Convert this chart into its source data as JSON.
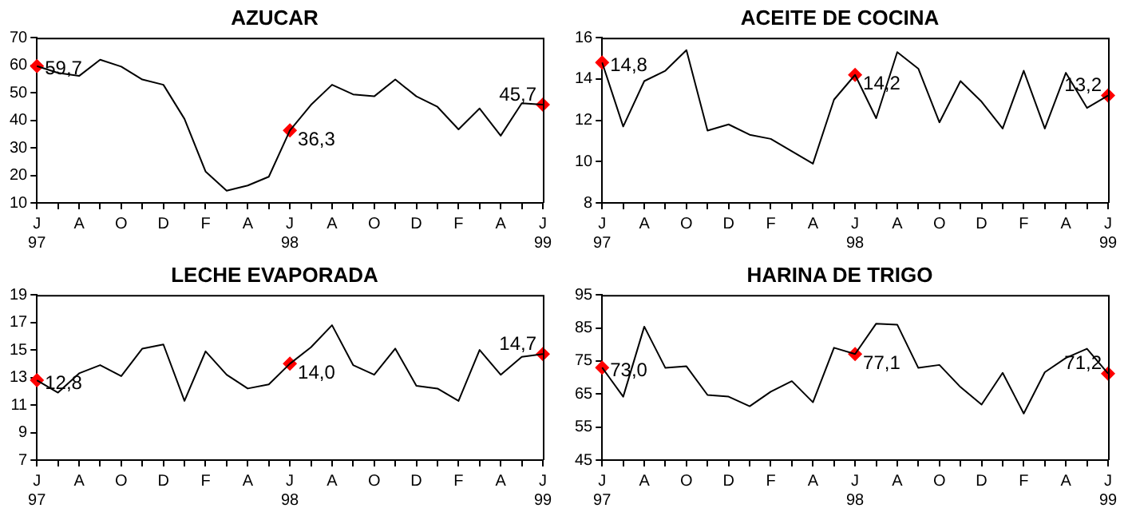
{
  "chart_data": [
    {
      "type": "line",
      "title": "AZUCAR",
      "categories": [
        "J\n97",
        null,
        "A",
        null,
        "O",
        null,
        "D",
        null,
        "F",
        null,
        "A",
        null,
        "J\n98",
        null,
        "A",
        null,
        "O",
        null,
        "D",
        null,
        "F",
        null,
        "A",
        null,
        "J\n99"
      ],
      "series": [
        {
          "color": "#000000",
          "marker": "none",
          "values": [
            59.7,
            57.2,
            56.1,
            62,
            59.5,
            54.8,
            52.9,
            40.5,
            21.4,
            14.4,
            16.3,
            19.5,
            36.3,
            45.6,
            52.9,
            49.4,
            48.7,
            54.8,
            48.7,
            44.9,
            36.7,
            44.3,
            34.4,
            46.2,
            45.7
          ]
        },
        {
          "type": "scatter",
          "color": "#ff0000",
          "marker": "diamond",
          "values": [
            59.7,
            null,
            null,
            null,
            null,
            null,
            null,
            null,
            null,
            null,
            null,
            null,
            36.3,
            null,
            null,
            null,
            null,
            null,
            null,
            null,
            null,
            null,
            null,
            null,
            45.7
          ],
          "value_labels": [
            "59,7",
            null,
            null,
            null,
            null,
            null,
            null,
            null,
            null,
            null,
            null,
            null,
            "36,3",
            null,
            null,
            null,
            null,
            null,
            null,
            null,
            null,
            null,
            null,
            null,
            "45,7"
          ]
        }
      ],
      "ylim": [
        10,
        70
      ],
      "yticks": [
        10,
        20,
        30,
        40,
        50,
        60,
        70
      ],
      "grid": false,
      "legend": false
    },
    {
      "type": "line",
      "title": "ACEITE DE COCINA",
      "categories": [
        "J\n97",
        null,
        "A",
        null,
        "O",
        null,
        "D",
        null,
        "F",
        null,
        "A",
        null,
        "J\n98",
        null,
        "A",
        null,
        "O",
        null,
        "D",
        null,
        "F",
        null,
        "A",
        null,
        "J\n99"
      ],
      "series": [
        {
          "color": "#000000",
          "marker": "none",
          "values": [
            14.8,
            11.7,
            13.9,
            14.4,
            15.4,
            11.5,
            11.8,
            11.3,
            11.1,
            10.5,
            9.9,
            13.0,
            14.2,
            12.1,
            15.3,
            14.5,
            11.9,
            13.9,
            12.9,
            11.6,
            14.4,
            11.6,
            14.3,
            12.6,
            13.2
          ]
        },
        {
          "type": "scatter",
          "color": "#ff0000",
          "marker": "diamond",
          "values": [
            14.8,
            null,
            null,
            null,
            null,
            null,
            null,
            null,
            null,
            null,
            null,
            null,
            14.2,
            null,
            null,
            null,
            null,
            null,
            null,
            null,
            null,
            null,
            null,
            null,
            13.2
          ],
          "value_labels": [
            "14,8",
            null,
            null,
            null,
            null,
            null,
            null,
            null,
            null,
            null,
            null,
            null,
            "14,2",
            null,
            null,
            null,
            null,
            null,
            null,
            null,
            null,
            null,
            null,
            null,
            "13,2"
          ]
        }
      ],
      "ylim": [
        8,
        16
      ],
      "yticks": [
        8,
        10,
        12,
        14,
        16
      ],
      "grid": false,
      "legend": false
    },
    {
      "type": "line",
      "title": "LECHE EVAPORADA",
      "categories": [
        "J\n97",
        null,
        "A",
        null,
        "O",
        null,
        "D",
        null,
        "F",
        null,
        "A",
        null,
        "J\n98",
        null,
        "A",
        null,
        "O",
        null,
        "D",
        null,
        "F",
        null,
        "A",
        null,
        "J\n99"
      ],
      "series": [
        {
          "color": "#000000",
          "marker": "none",
          "values": [
            12.8,
            11.9,
            13.3,
            13.9,
            13.1,
            15.1,
            15.4,
            11.3,
            14.9,
            13.2,
            12.2,
            12.5,
            14.0,
            15.2,
            16.8,
            13.9,
            13.2,
            15.1,
            12.4,
            12.2,
            11.3,
            15.0,
            13.2,
            14.5,
            14.7
          ]
        },
        {
          "type": "scatter",
          "color": "#ff0000",
          "marker": "diamond",
          "values": [
            12.8,
            null,
            null,
            null,
            null,
            null,
            null,
            null,
            null,
            null,
            null,
            null,
            14.0,
            null,
            null,
            null,
            null,
            null,
            null,
            null,
            null,
            null,
            null,
            null,
            14.7
          ],
          "value_labels": [
            "12,8",
            null,
            null,
            null,
            null,
            null,
            null,
            null,
            null,
            null,
            null,
            null,
            "14,0",
            null,
            null,
            null,
            null,
            null,
            null,
            null,
            null,
            null,
            null,
            null,
            "14,7"
          ]
        }
      ],
      "ylim": [
        7,
        19
      ],
      "yticks": [
        7,
        9,
        11,
        13,
        15,
        17,
        19
      ],
      "grid": false,
      "legend": false
    },
    {
      "type": "line",
      "title": "HARINA DE TRIGO",
      "categories": [
        "J\n97",
        null,
        "A",
        null,
        "O",
        null,
        "D",
        null,
        "F",
        null,
        "A",
        null,
        "J\n98",
        null,
        "A",
        null,
        "O",
        null,
        "D",
        null,
        "F",
        null,
        "A",
        null,
        "J\n99"
      ],
      "series": [
        {
          "color": "#000000",
          "marker": "none",
          "values": [
            73.0,
            64.2,
            85.4,
            72.9,
            73.4,
            64.7,
            64.2,
            61.3,
            65.7,
            68.9,
            62.5,
            79.0,
            77.1,
            86.3,
            86.0,
            72.9,
            73.8,
            67.1,
            61.8,
            71.4,
            59.1,
            71.6,
            75.9,
            78.7,
            71.2
          ]
        },
        {
          "type": "scatter",
          "color": "#ff0000",
          "marker": "diamond",
          "values": [
            73.0,
            null,
            null,
            null,
            null,
            null,
            null,
            null,
            null,
            null,
            null,
            null,
            77.1,
            null,
            null,
            null,
            null,
            null,
            null,
            null,
            null,
            null,
            null,
            null,
            71.2
          ],
          "value_labels": [
            "73,0",
            null,
            null,
            null,
            null,
            null,
            null,
            null,
            null,
            null,
            null,
            null,
            "77,1",
            null,
            null,
            null,
            null,
            null,
            null,
            null,
            null,
            null,
            null,
            null,
            "71,2"
          ]
        }
      ],
      "ylim": [
        45,
        95
      ],
      "yticks": [
        45,
        55,
        65,
        75,
        85,
        95
      ],
      "grid": false,
      "legend": false
    }
  ]
}
